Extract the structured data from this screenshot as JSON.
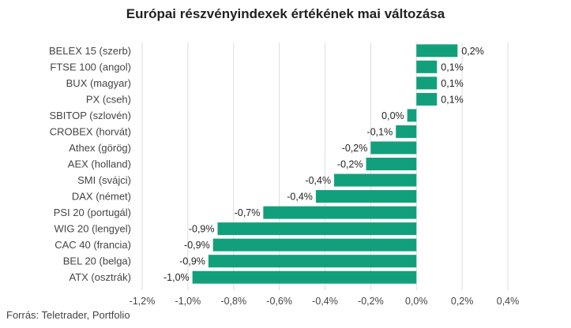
{
  "chart_data": {
    "type": "bar",
    "orientation": "horizontal",
    "title": "Európai részvényindexek értékének mai változása",
    "source": "Forrás: Teletrader, Portfolio",
    "xlim": [
      -1.2,
      0.4
    ],
    "ticks": [
      -1.2,
      -1.0,
      -0.8,
      -0.6,
      -0.4,
      -0.2,
      0.0,
      0.2,
      0.4
    ],
    "tick_labels": [
      "-1,2%",
      "-1,0%",
      "-0,8%",
      "-0,6%",
      "-0,4%",
      "-0,2%",
      "0,0%",
      "0,2%",
      "0,4%"
    ],
    "grid": true,
    "bar_color": "#12A07C",
    "grid_color": "#dddddd",
    "categories": [
      "BELEX 15 (szerb)",
      "FTSE 100 (angol)",
      "BUX (magyar)",
      "PX (cseh)",
      "SBITOP (szlovén)",
      "CROBEX (horvát)",
      "Athex (görög)",
      "AEX (holland)",
      "SMI (svájci)",
      "DAX (német)",
      "PSI 20 (portugál)",
      "WIG 20 (lengyel)",
      "CAC 40 (francia)",
      "BEL 20 (belga)",
      "ATX (osztrák)"
    ],
    "values": [
      0.18,
      0.09,
      0.09,
      0.09,
      -0.04,
      -0.09,
      -0.2,
      -0.22,
      -0.36,
      -0.44,
      -0.67,
      -0.87,
      -0.89,
      -0.91,
      -0.98
    ],
    "value_labels": [
      "0,2%",
      "0,1%",
      "0,1%",
      "0,1%",
      "0,0%",
      "-0,1%",
      "-0,2%",
      "-0,2%",
      "-0,4%",
      "-0,4%",
      "-0,7%",
      "-0,9%",
      "-0,9%",
      "-0,9%",
      "-1,0%"
    ]
  }
}
